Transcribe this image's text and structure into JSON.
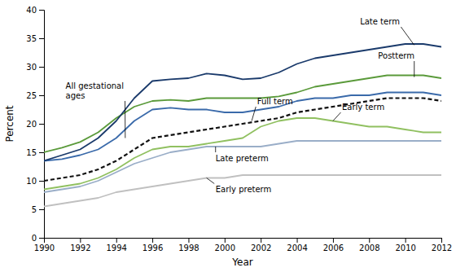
{
  "chart_data": {
    "type": "line",
    "x": [
      1990,
      1991,
      1992,
      1993,
      1994,
      1995,
      1996,
      1997,
      1998,
      1999,
      2000,
      2001,
      2002,
      2003,
      2004,
      2005,
      2006,
      2007,
      2008,
      2009,
      2010,
      2011,
      2012
    ],
    "series": [
      {
        "color": "#c0c0c0",
        "line_style": "solid",
        "values": [
          5.5,
          6.0,
          6.5,
          7.0,
          8.0,
          8.5,
          9.0,
          9.5,
          10.0,
          10.5,
          10.5,
          11.0,
          11.0,
          11.0,
          11.0,
          11.0,
          11.0,
          11.0,
          11.0,
          11.0,
          11.0,
          11.0,
          11.0
        ]
      },
      {
        "color": "#9aaec8",
        "line_style": "solid",
        "values": [
          8.0,
          8.5,
          9.0,
          10.0,
          11.5,
          13.0,
          14.0,
          15.0,
          15.5,
          16.0,
          16.0,
          16.0,
          16.0,
          16.5,
          17.0,
          17.0,
          17.0,
          17.0,
          17.0,
          17.0,
          17.0,
          17.0,
          17.0
        ]
      },
      {
        "color": "#90c060",
        "line_style": "solid",
        "values": [
          8.5,
          9.0,
          9.5,
          10.5,
          12.0,
          14.0,
          15.5,
          16.0,
          16.0,
          16.5,
          17.0,
          17.5,
          19.5,
          20.5,
          21.0,
          21.0,
          20.5,
          20.0,
          19.5,
          19.5,
          19.0,
          18.5,
          18.5
        ]
      },
      {
        "color": "#111111",
        "line_style": "dashed",
        "values": [
          10.0,
          10.5,
          11.0,
          12.0,
          13.5,
          15.5,
          17.5,
          18.0,
          18.5,
          19.0,
          19.5,
          20.0,
          20.5,
          21.0,
          22.0,
          22.5,
          23.0,
          23.5,
          24.0,
          24.5,
          24.5,
          24.5,
          24.0
        ]
      },
      {
        "color": "#3a6aaa",
        "line_style": "solid",
        "values": [
          13.5,
          13.8,
          14.5,
          15.5,
          17.5,
          20.5,
          22.5,
          22.8,
          22.5,
          22.5,
          22.0,
          22.0,
          22.5,
          23.0,
          24.0,
          24.5,
          24.5,
          25.0,
          25.0,
          25.5,
          25.5,
          25.5,
          25.0
        ]
      },
      {
        "color": "#5a9a3a",
        "line_style": "solid",
        "values": [
          15.0,
          15.8,
          16.8,
          18.5,
          21.0,
          23.0,
          24.0,
          24.2,
          24.0,
          24.5,
          24.5,
          24.5,
          24.5,
          24.8,
          25.5,
          26.5,
          27.0,
          27.5,
          28.0,
          28.5,
          28.5,
          28.5,
          28.0
        ]
      },
      {
        "color": "#1a3a6b",
        "line_style": "solid",
        "values": [
          13.5,
          14.5,
          15.5,
          17.5,
          20.5,
          24.5,
          27.5,
          27.8,
          28.0,
          28.8,
          28.5,
          27.8,
          28.0,
          29.0,
          30.5,
          31.5,
          32.0,
          32.5,
          33.0,
          33.5,
          34.0,
          34.0,
          33.5
        ]
      }
    ],
    "xlabel": "Year",
    "ylabel": "Percent",
    "xlim": [
      1990,
      2012
    ],
    "ylim": [
      0,
      40
    ],
    "xticks": [
      1990,
      1992,
      1994,
      1996,
      1998,
      2000,
      2002,
      2004,
      2006,
      2008,
      2010,
      2012
    ],
    "yticks": [
      0,
      5,
      10,
      15,
      20,
      25,
      30,
      35,
      40
    ],
    "grid": false,
    "annotations": [
      {
        "text": "Late term",
        "xy": [
          2010.5,
          33.8
        ],
        "xytext": [
          2007.5,
          37.5
        ]
      },
      {
        "text": "Postterm",
        "xy": [
          2010.5,
          28.2
        ],
        "xytext": [
          2008.5,
          31.5
        ]
      },
      {
        "text": "All gestational\nages",
        "xy": [
          1994.5,
          17.5
        ],
        "xytext": [
          1991.2,
          24.5
        ]
      },
      {
        "text": "Full term",
        "xy": [
          2001.5,
          20.5
        ],
        "xytext": [
          2001.8,
          23.5
        ]
      },
      {
        "text": "Early term",
        "xy": [
          2006.0,
          20.5
        ],
        "xytext": [
          2006.5,
          22.5
        ]
      },
      {
        "text": "Late preterm",
        "xy": [
          1999.5,
          16.0
        ],
        "xytext": [
          1999.5,
          13.5
        ]
      },
      {
        "text": "Early preterm",
        "xy": [
          1999.0,
          10.5
        ],
        "xytext": [
          1999.5,
          8.0
        ]
      }
    ]
  }
}
